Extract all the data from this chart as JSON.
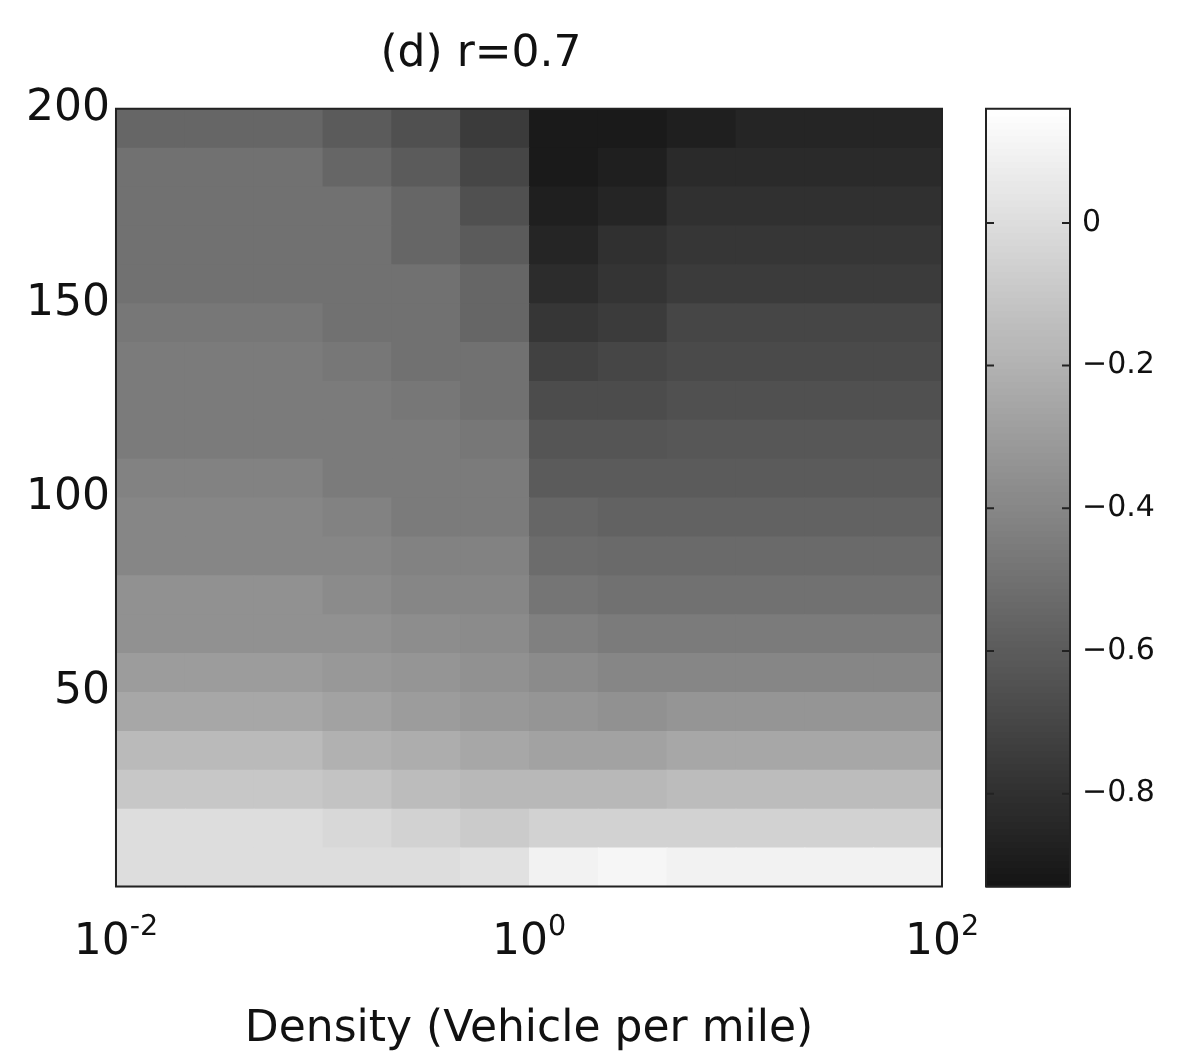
{
  "chart_data": {
    "type": "heatmap",
    "title": "(d) r=0.7",
    "xlabel": "Density (Vehicle per mile)",
    "log": "x",
    "xlim": [
      0.01,
      100
    ],
    "xticks": [
      {
        "value": 0.01,
        "label": "10$^{-2}$"
      },
      {
        "value": 1,
        "label": "10$^{0}$"
      },
      {
        "value": 100,
        "label": "10$^{2}$"
      }
    ],
    "ylim": [
      0,
      200
    ],
    "yticks": [
      50,
      100,
      150,
      200
    ],
    "clim": [
      -0.93,
      0.16
    ],
    "cticks": [
      {
        "value": 0,
        "label": "0"
      },
      {
        "value": -0.2,
        "label": "−0.2"
      },
      {
        "value": -0.4,
        "label": "−0.4"
      },
      {
        "value": -0.6,
        "label": "−0.6"
      },
      {
        "value": -0.8,
        "label": "−0.8"
      }
    ],
    "x": [
      0.0147,
      0.0316,
      0.0681,
      0.147,
      0.316,
      0.681,
      1.47,
      3.16,
      6.81,
      14.7,
      31.6,
      68.1
    ],
    "y": [
      195,
      185,
      175,
      165,
      155,
      145,
      135,
      125,
      115,
      105,
      95,
      85,
      75,
      65,
      55,
      45,
      35,
      25,
      15,
      5
    ],
    "cells": [
      [
        -0.55,
        -0.55,
        -0.55,
        -0.6,
        -0.65,
        -0.75,
        -0.9,
        -0.9,
        -0.88,
        -0.85,
        -0.85,
        -0.85
      ],
      [
        -0.5,
        -0.5,
        -0.5,
        -0.55,
        -0.6,
        -0.7,
        -0.9,
        -0.88,
        -0.83,
        -0.83,
        -0.83,
        -0.83
      ],
      [
        -0.5,
        -0.5,
        -0.5,
        -0.5,
        -0.55,
        -0.65,
        -0.88,
        -0.85,
        -0.8,
        -0.8,
        -0.8,
        -0.8
      ],
      [
        -0.5,
        -0.5,
        -0.5,
        -0.5,
        -0.55,
        -0.6,
        -0.85,
        -0.8,
        -0.77,
        -0.77,
        -0.77,
        -0.77
      ],
      [
        -0.5,
        -0.5,
        -0.5,
        -0.5,
        -0.5,
        -0.55,
        -0.82,
        -0.78,
        -0.75,
        -0.75,
        -0.75,
        -0.75
      ],
      [
        -0.47,
        -0.47,
        -0.47,
        -0.5,
        -0.5,
        -0.55,
        -0.77,
        -0.75,
        -0.7,
        -0.7,
        -0.7,
        -0.7
      ],
      [
        -0.45,
        -0.45,
        -0.45,
        -0.47,
        -0.5,
        -0.5,
        -0.72,
        -0.7,
        -0.68,
        -0.68,
        -0.68,
        -0.68
      ],
      [
        -0.45,
        -0.45,
        -0.45,
        -0.45,
        -0.47,
        -0.5,
        -0.67,
        -0.67,
        -0.65,
        -0.65,
        -0.65,
        -0.65
      ],
      [
        -0.45,
        -0.45,
        -0.45,
        -0.45,
        -0.45,
        -0.47,
        -0.63,
        -0.63,
        -0.62,
        -0.62,
        -0.62,
        -0.62
      ],
      [
        -0.42,
        -0.42,
        -0.42,
        -0.45,
        -0.45,
        -0.45,
        -0.6,
        -0.6,
        -0.6,
        -0.6,
        -0.6,
        -0.6
      ],
      [
        -0.4,
        -0.4,
        -0.4,
        -0.42,
        -0.45,
        -0.45,
        -0.55,
        -0.57,
        -0.57,
        -0.57,
        -0.57,
        -0.57
      ],
      [
        -0.4,
        -0.4,
        -0.4,
        -0.4,
        -0.42,
        -0.42,
        -0.52,
        -0.53,
        -0.53,
        -0.53,
        -0.53,
        -0.53
      ],
      [
        -0.35,
        -0.35,
        -0.35,
        -0.38,
        -0.4,
        -0.4,
        -0.48,
        -0.5,
        -0.5,
        -0.5,
        -0.5,
        -0.5
      ],
      [
        -0.35,
        -0.35,
        -0.35,
        -0.35,
        -0.37,
        -0.38,
        -0.43,
        -0.45,
        -0.45,
        -0.45,
        -0.45,
        -0.45
      ],
      [
        -0.3,
        -0.3,
        -0.3,
        -0.32,
        -0.33,
        -0.35,
        -0.38,
        -0.4,
        -0.4,
        -0.4,
        -0.4,
        -0.4
      ],
      [
        -0.25,
        -0.25,
        -0.25,
        -0.27,
        -0.3,
        -0.32,
        -0.33,
        -0.35,
        -0.33,
        -0.33,
        -0.33,
        -0.33
      ],
      [
        -0.16,
        -0.16,
        -0.16,
        -0.2,
        -0.22,
        -0.25,
        -0.27,
        -0.27,
        -0.25,
        -0.25,
        -0.25,
        -0.25
      ],
      [
        -0.1,
        -0.1,
        -0.1,
        -0.12,
        -0.15,
        -0.17,
        -0.17,
        -0.17,
        -0.15,
        -0.15,
        -0.15,
        -0.15
      ],
      [
        0.0,
        0.0,
        0.0,
        -0.02,
        -0.05,
        -0.08,
        -0.05,
        -0.05,
        -0.05,
        -0.05,
        -0.05,
        -0.05
      ],
      [
        0.0,
        0.0,
        0.0,
        0.0,
        0.0,
        0.02,
        0.1,
        0.12,
        0.1,
        0.1,
        0.1,
        0.1
      ]
    ]
  }
}
